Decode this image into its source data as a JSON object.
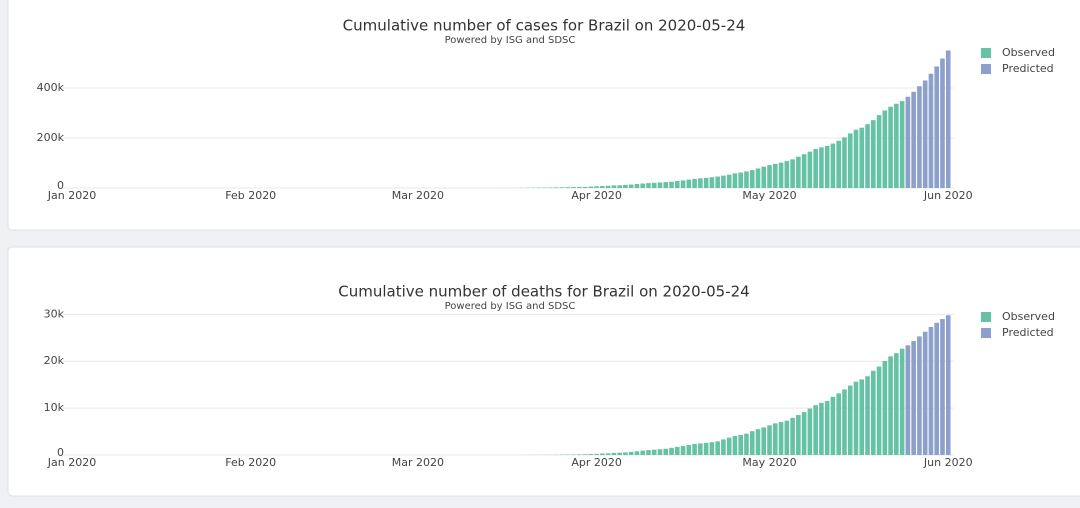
{
  "chart_data": [
    {
      "type": "bar",
      "title": "Cumulative number of cases for Brazil on 2020-05-24",
      "subtitle": "Powered by ISG and SDSC",
      "xlim": [
        "2020-01-01",
        "2020-06-02"
      ],
      "xticks": [
        {
          "value": "2020-01-01",
          "label": "Jan 2020"
        },
        {
          "value": "2020-02-01",
          "label": "Feb 2020"
        },
        {
          "value": "2020-03-01",
          "label": "Mar 2020"
        },
        {
          "value": "2020-04-01",
          "label": "Apr 2020"
        },
        {
          "value": "2020-05-01",
          "label": "May 2020"
        },
        {
          "value": "2020-06-01",
          "label": "Jun 2020"
        }
      ],
      "ylim": [
        0,
        560000
      ],
      "yticks": [
        0,
        {
          "value": 200000,
          "label": "200k"
        },
        {
          "value": 400000,
          "label": "400k"
        }
      ],
      "grid": true,
      "legend": "top-right",
      "series": [
        {
          "name": "Observed",
          "color": "#66c2a5",
          "x": [
            "2020-03-08",
            "2020-03-09",
            "2020-03-10",
            "2020-03-11",
            "2020-03-12",
            "2020-03-13",
            "2020-03-14",
            "2020-03-15",
            "2020-03-16",
            "2020-03-17",
            "2020-03-18",
            "2020-03-19",
            "2020-03-20",
            "2020-03-21",
            "2020-03-22",
            "2020-03-23",
            "2020-03-24",
            "2020-03-25",
            "2020-03-26",
            "2020-03-27",
            "2020-03-28",
            "2020-03-29",
            "2020-03-30",
            "2020-03-31",
            "2020-04-01",
            "2020-04-02",
            "2020-04-03",
            "2020-04-04",
            "2020-04-05",
            "2020-04-06",
            "2020-04-07",
            "2020-04-08",
            "2020-04-09",
            "2020-04-10",
            "2020-04-11",
            "2020-04-12",
            "2020-04-13",
            "2020-04-14",
            "2020-04-15",
            "2020-04-16",
            "2020-04-17",
            "2020-04-18",
            "2020-04-19",
            "2020-04-20",
            "2020-04-21",
            "2020-04-22",
            "2020-04-23",
            "2020-04-24",
            "2020-04-25",
            "2020-04-26",
            "2020-04-27",
            "2020-04-28",
            "2020-04-29",
            "2020-04-30",
            "2020-05-01",
            "2020-05-02",
            "2020-05-03",
            "2020-05-04",
            "2020-05-05",
            "2020-05-06",
            "2020-05-07",
            "2020-05-08",
            "2020-05-09",
            "2020-05-10",
            "2020-05-11",
            "2020-05-12",
            "2020-05-13",
            "2020-05-14",
            "2020-05-15",
            "2020-05-16",
            "2020-05-17",
            "2020-05-18",
            "2020-05-19",
            "2020-05-20",
            "2020-05-21",
            "2020-05-22",
            "2020-05-23",
            "2020-05-24"
          ],
          "values": [
            25,
            25,
            34,
            52,
            77,
            98,
            121,
            200,
            234,
            291,
            428,
            621,
            904,
            1128,
            1546,
            1891,
            2201,
            2433,
            2915,
            3417,
            3904,
            4256,
            4579,
            5717,
            6836,
            8044,
            9056,
            10360,
            11130,
            12056,
            13717,
            15927,
            17857,
            19638,
            20727,
            22169,
            23430,
            25262,
            28320,
            30425,
            33682,
            36599,
            38654,
            40581,
            43079,
            45757,
            49492,
            52995,
            58509,
            61888,
            66501,
            71886,
            78162,
            85380,
            91589,
            96559,
            101147,
            107780,
            114715,
            125218,
            135106,
            145328,
            155939,
            162699,
            168331,
            177589,
            188974,
            202918,
            218223,
            233142,
            241080,
            255368,
            271628,
            291579,
            310087,
            325000,
            337000,
            347398
          ]
        },
        {
          "name": "Predicted",
          "color": "#8da0cb",
          "x": [
            "2020-05-25",
            "2020-05-26",
            "2020-05-27",
            "2020-05-28",
            "2020-05-29",
            "2020-05-30",
            "2020-05-31",
            "2020-06-01"
          ],
          "values": [
            365000,
            385000,
            407000,
            430000,
            457000,
            486000,
            518000,
            550000
          ]
        }
      ]
    },
    {
      "type": "bar",
      "title": "Cumulative number of deaths for Brazil on 2020-05-24",
      "subtitle": "Powered by ISG and SDSC",
      "xlim": [
        "2020-01-01",
        "2020-06-02"
      ],
      "xticks": [
        {
          "value": "2020-01-01",
          "label": "Jan 2020"
        },
        {
          "value": "2020-02-01",
          "label": "Feb 2020"
        },
        {
          "value": "2020-03-01",
          "label": "Mar 2020"
        },
        {
          "value": "2020-04-01",
          "label": "Apr 2020"
        },
        {
          "value": "2020-05-01",
          "label": "May 2020"
        },
        {
          "value": "2020-06-01",
          "label": "Jun 2020"
        }
      ],
      "ylim": [
        0,
        30500
      ],
      "yticks": [
        0,
        {
          "value": 10000,
          "label": "10k"
        },
        {
          "value": 20000,
          "label": "20k"
        },
        {
          "value": 30000,
          "label": "30k"
        }
      ],
      "grid": true,
      "legend": "top-right",
      "series": [
        {
          "name": "Observed",
          "color": "#66c2a5",
          "x": [
            "2020-03-17",
            "2020-03-18",
            "2020-03-19",
            "2020-03-20",
            "2020-03-21",
            "2020-03-22",
            "2020-03-23",
            "2020-03-24",
            "2020-03-25",
            "2020-03-26",
            "2020-03-27",
            "2020-03-28",
            "2020-03-29",
            "2020-03-30",
            "2020-03-31",
            "2020-04-01",
            "2020-04-02",
            "2020-04-03",
            "2020-04-04",
            "2020-04-05",
            "2020-04-06",
            "2020-04-07",
            "2020-04-08",
            "2020-04-09",
            "2020-04-10",
            "2020-04-11",
            "2020-04-12",
            "2020-04-13",
            "2020-04-14",
            "2020-04-15",
            "2020-04-16",
            "2020-04-17",
            "2020-04-18",
            "2020-04-19",
            "2020-04-20",
            "2020-04-21",
            "2020-04-22",
            "2020-04-23",
            "2020-04-24",
            "2020-04-25",
            "2020-04-26",
            "2020-04-27",
            "2020-04-28",
            "2020-04-29",
            "2020-04-30",
            "2020-05-01",
            "2020-05-02",
            "2020-05-03",
            "2020-05-04",
            "2020-05-05",
            "2020-05-06",
            "2020-05-07",
            "2020-05-08",
            "2020-05-09",
            "2020-05-10",
            "2020-05-11",
            "2020-05-12",
            "2020-05-13",
            "2020-05-14",
            "2020-05-15",
            "2020-05-16",
            "2020-05-17",
            "2020-05-18",
            "2020-05-19",
            "2020-05-20",
            "2020-05-21",
            "2020-05-22",
            "2020-05-23",
            "2020-05-24"
          ],
          "values": [
            1,
            3,
            6,
            11,
            18,
            25,
            34,
            46,
            59,
            77,
            92,
            111,
            136,
            159,
            201,
            240,
            324,
            359,
            445,
            486,
            553,
            667,
            800,
            941,
            1056,
            1124,
            1223,
            1328,
            1532,
            1736,
            1924,
            2141,
            2354,
            2462,
            2587,
            2741,
            2906,
            3331,
            3704,
            4045,
            4271,
            4543,
            5083,
            5513,
            5901,
            6329,
            6750,
            7025,
            7321,
            7921,
            8536,
            9146,
            9897,
            10627,
            11123,
            11519,
            12400,
            13149,
            13993,
            14817,
            15633,
            16118,
            16792,
            17971,
            18859,
            20047,
            21048,
            21718,
            22666
          ]
        },
        {
          "name": "Predicted",
          "color": "#8da0cb",
          "x": [
            "2020-05-25",
            "2020-05-26",
            "2020-05-27",
            "2020-05-28",
            "2020-05-29",
            "2020-05-30",
            "2020-05-31",
            "2020-06-01"
          ],
          "values": [
            23400,
            24300,
            25300,
            26300,
            27300,
            28200,
            29000,
            29800
          ]
        }
      ]
    }
  ]
}
